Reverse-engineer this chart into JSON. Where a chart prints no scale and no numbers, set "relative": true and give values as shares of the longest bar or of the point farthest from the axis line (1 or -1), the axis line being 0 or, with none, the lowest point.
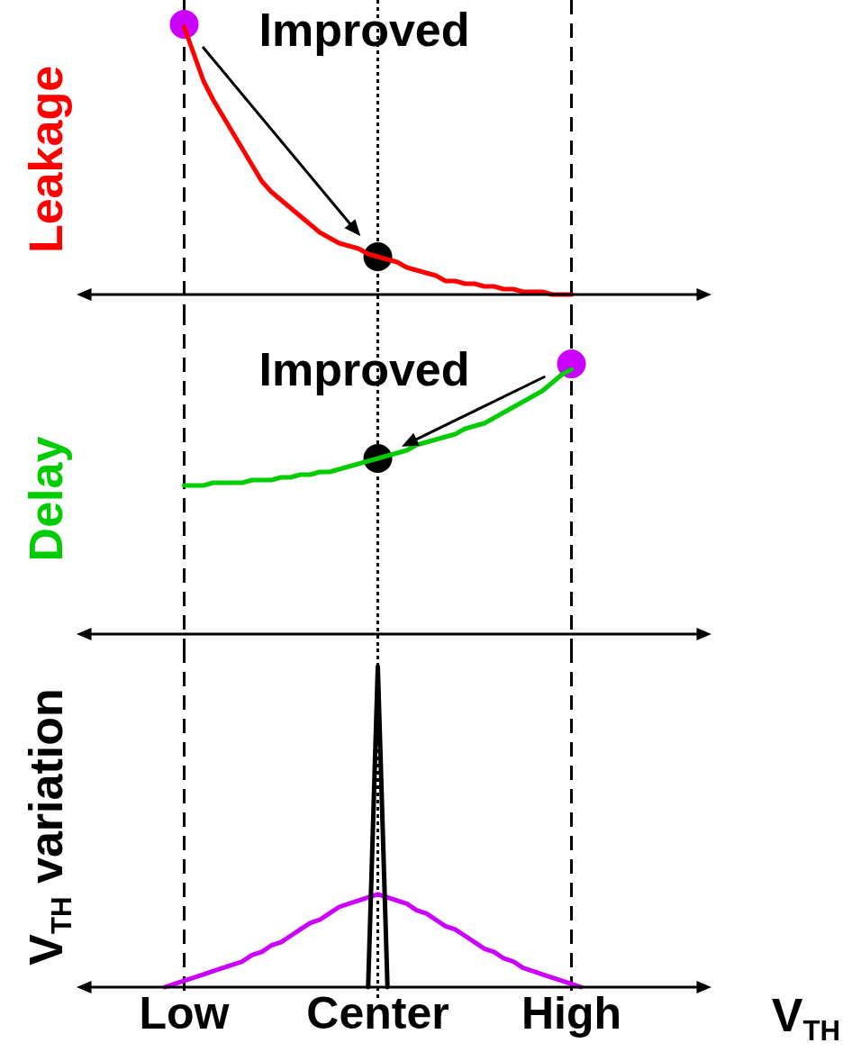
{
  "chart_data": [
    {
      "type": "line",
      "relative": true,
      "ylabel": "Leakage",
      "categories": [
        null,
        null,
        "Low",
        null,
        null,
        null,
        null,
        null,
        null,
        null,
        null,
        null,
        null,
        null,
        null,
        null,
        null,
        null,
        null,
        null,
        null,
        null,
        "Center",
        null,
        null,
        null,
        null,
        null,
        null,
        null,
        null,
        null,
        null,
        null,
        null,
        null,
        null,
        null,
        null,
        null,
        null,
        null,
        "High",
        null,
        null
      ],
      "tick_labels": false,
      "ref_lines": [
        {
          "axis": "x",
          "value": "Low",
          "line_style": "dashed"
        },
        {
          "axis": "x",
          "value": "Center",
          "line_style": "dotted"
        },
        {
          "axis": "x",
          "value": "High",
          "line_style": "dashed"
        }
      ],
      "annotations": [
        "Improved"
      ],
      "series": [
        {
          "color": "#ff0000",
          "values": [
            null,
            null,
            0.99,
            0.89,
            0.79,
            0.72,
            0.66,
            0.6,
            0.54,
            0.48,
            0.42,
            0.38,
            0.35,
            0.32,
            0.29,
            0.26,
            0.23,
            0.21,
            0.19,
            0.18,
            0.17,
            0.15,
            0.14,
            0.13,
            0.12,
            0.1,
            0.09,
            0.08,
            0.07,
            0.05,
            0.05,
            0.04,
            0.04,
            0.03,
            0.03,
            0.02,
            0.02,
            0.01,
            0.01,
            0.01,
            0,
            0,
            0,
            null,
            null
          ],
          "marker": "none"
        },
        {
          "type": "scatter",
          "color": "#cc00ff",
          "x": [
            "Low"
          ],
          "values": [
            1
          ],
          "marker": "circle"
        },
        {
          "type": "scatter",
          "color": "#000000",
          "x": [
            "Center"
          ],
          "values": [
            0.14
          ],
          "marker": "circle"
        }
      ]
    },
    {
      "type": "line",
      "relative": true,
      "ylabel": "Delay",
      "categories": [
        null,
        null,
        "Low",
        null,
        null,
        null,
        null,
        null,
        null,
        null,
        null,
        null,
        null,
        null,
        null,
        null,
        null,
        null,
        null,
        null,
        null,
        null,
        "Center",
        null,
        null,
        null,
        null,
        null,
        null,
        null,
        null,
        null,
        null,
        null,
        null,
        null,
        null,
        null,
        null,
        null,
        null,
        null,
        "High",
        null,
        null
      ],
      "tick_labels": false,
      "ref_lines": [
        {
          "axis": "x",
          "value": "Low",
          "line_style": "dashed"
        },
        {
          "axis": "x",
          "value": "Center",
          "line_style": "dotted"
        },
        {
          "axis": "x",
          "value": "High",
          "line_style": "dashed"
        }
      ],
      "annotations": [
        "Improved"
      ],
      "series": [
        {
          "color": "#00cc00",
          "values": [
            null,
            null,
            0.55,
            0.55,
            0.55,
            0.56,
            0.56,
            0.56,
            0.56,
            0.57,
            0.57,
            0.57,
            0.58,
            0.58,
            0.59,
            0.59,
            0.6,
            0.6,
            0.61,
            0.62,
            0.63,
            0.64,
            0.65,
            0.66,
            0.67,
            0.68,
            0.7,
            0.71,
            0.72,
            0.73,
            0.74,
            0.76,
            0.77,
            0.78,
            0.8,
            0.82,
            0.84,
            0.86,
            0.88,
            0.9,
            0.93,
            0.96,
            0.98,
            null,
            null
          ],
          "marker": "none"
        },
        {
          "type": "scatter",
          "color": "#cc00ff",
          "x": [
            "High"
          ],
          "values": [
            1
          ],
          "marker": "circle"
        },
        {
          "type": "scatter",
          "color": "#000000",
          "x": [
            "Center"
          ],
          "values": [
            0.65
          ],
          "marker": "circle"
        }
      ]
    },
    {
      "type": "line",
      "relative": true,
      "ylabel": "V$_{TH}$ variation",
      "xlabel": "V$_{TH}$",
      "categories": [
        null,
        null,
        "Low",
        null,
        null,
        null,
        null,
        null,
        null,
        null,
        null,
        null,
        null,
        null,
        null,
        null,
        null,
        null,
        null,
        null,
        null,
        null,
        "Center",
        null,
        null,
        null,
        null,
        null,
        null,
        null,
        null,
        null,
        null,
        null,
        null,
        null,
        null,
        null,
        null,
        null,
        null,
        null,
        "High",
        null,
        null
      ],
      "tick_labels": "x",
      "ref_lines": [
        {
          "axis": "x",
          "value": "Low",
          "line_style": "dashed"
        },
        {
          "axis": "x",
          "value": "Center",
          "line_style": "dotted"
        },
        {
          "axis": "x",
          "value": "High",
          "line_style": "dashed"
        }
      ],
      "series": [
        {
          "color": "#000000",
          "values": [
            null,
            null,
            null,
            null,
            null,
            null,
            null,
            null,
            null,
            null,
            null,
            null,
            null,
            null,
            null,
            null,
            null,
            null,
            null,
            null,
            null,
            0,
            1,
            0,
            null,
            null,
            null,
            null,
            null,
            null,
            null,
            null,
            null,
            null,
            null,
            null,
            null,
            null,
            null,
            null,
            null,
            null,
            null,
            null,
            null
          ],
          "marker": "none"
        },
        {
          "color": "#cc00ff",
          "values": [
            0,
            0.01,
            0.02,
            0.03,
            0.04,
            0.05,
            0.06,
            0.07,
            0.08,
            0.1,
            0.11,
            0.13,
            0.14,
            0.16,
            0.18,
            0.2,
            0.21,
            0.23,
            0.25,
            0.26,
            0.27,
            0.28,
            0.29,
            0.28,
            0.27,
            0.26,
            0.24,
            0.23,
            0.21,
            0.19,
            0.18,
            0.16,
            0.14,
            0.12,
            0.11,
            0.09,
            0.08,
            0.06,
            0.05,
            0.04,
            0.03,
            0.02,
            0.01,
            0,
            null
          ],
          "marker": "none"
        }
      ]
    }
  ]
}
